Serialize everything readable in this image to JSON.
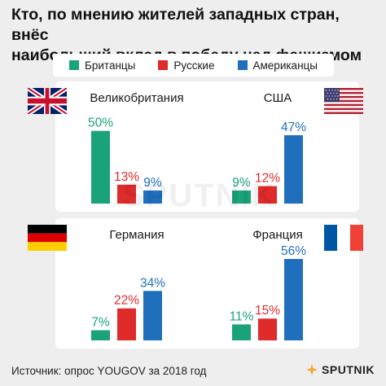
{
  "title_line1": "Кто, по мнению жителей западных стран, внёс",
  "title_line2": "наибольший вклад в победу над фашизмом",
  "legend": [
    {
      "label": "Британцы",
      "color": "#1aa37a"
    },
    {
      "label": "Русские",
      "color": "#e02b2b"
    },
    {
      "label": "Американцы",
      "color": "#1f6fbd"
    }
  ],
  "chart_data": [
    {
      "type": "bar",
      "title": "Великобритания",
      "flag": "uk-flag-icon",
      "categories": [
        "Британцы",
        "Русские",
        "Американцы"
      ],
      "values": [
        50,
        13,
        9
      ],
      "labels": [
        "50%",
        "13%",
        "9%"
      ],
      "ylim": [
        0,
        56
      ]
    },
    {
      "type": "bar",
      "title": "США",
      "flag": "usa-flag-icon",
      "categories": [
        "Британцы",
        "Русские",
        "Американцы"
      ],
      "values": [
        9,
        12,
        47
      ],
      "labels": [
        "9%",
        "12%",
        "47%"
      ],
      "ylim": [
        0,
        56
      ]
    },
    {
      "type": "bar",
      "title": "Германия",
      "flag": "germany-flag-icon",
      "categories": [
        "Британцы",
        "Русские",
        "Американцы"
      ],
      "values": [
        7,
        22,
        34
      ],
      "labels": [
        "7%",
        "22%",
        "34%"
      ],
      "ylim": [
        0,
        56
      ]
    },
    {
      "type": "bar",
      "title": "Франция",
      "flag": "france-flag-icon",
      "categories": [
        "Британцы",
        "Русские",
        "Американцы"
      ],
      "values": [
        11,
        15,
        56
      ],
      "labels": [
        "11%",
        "15%",
        "56%"
      ],
      "ylim": [
        0,
        56
      ]
    }
  ],
  "watermark": "SPUTNIK",
  "source": "Источник: опрос YOUGOV за 2018 год",
  "brand": "SPUTNIK"
}
